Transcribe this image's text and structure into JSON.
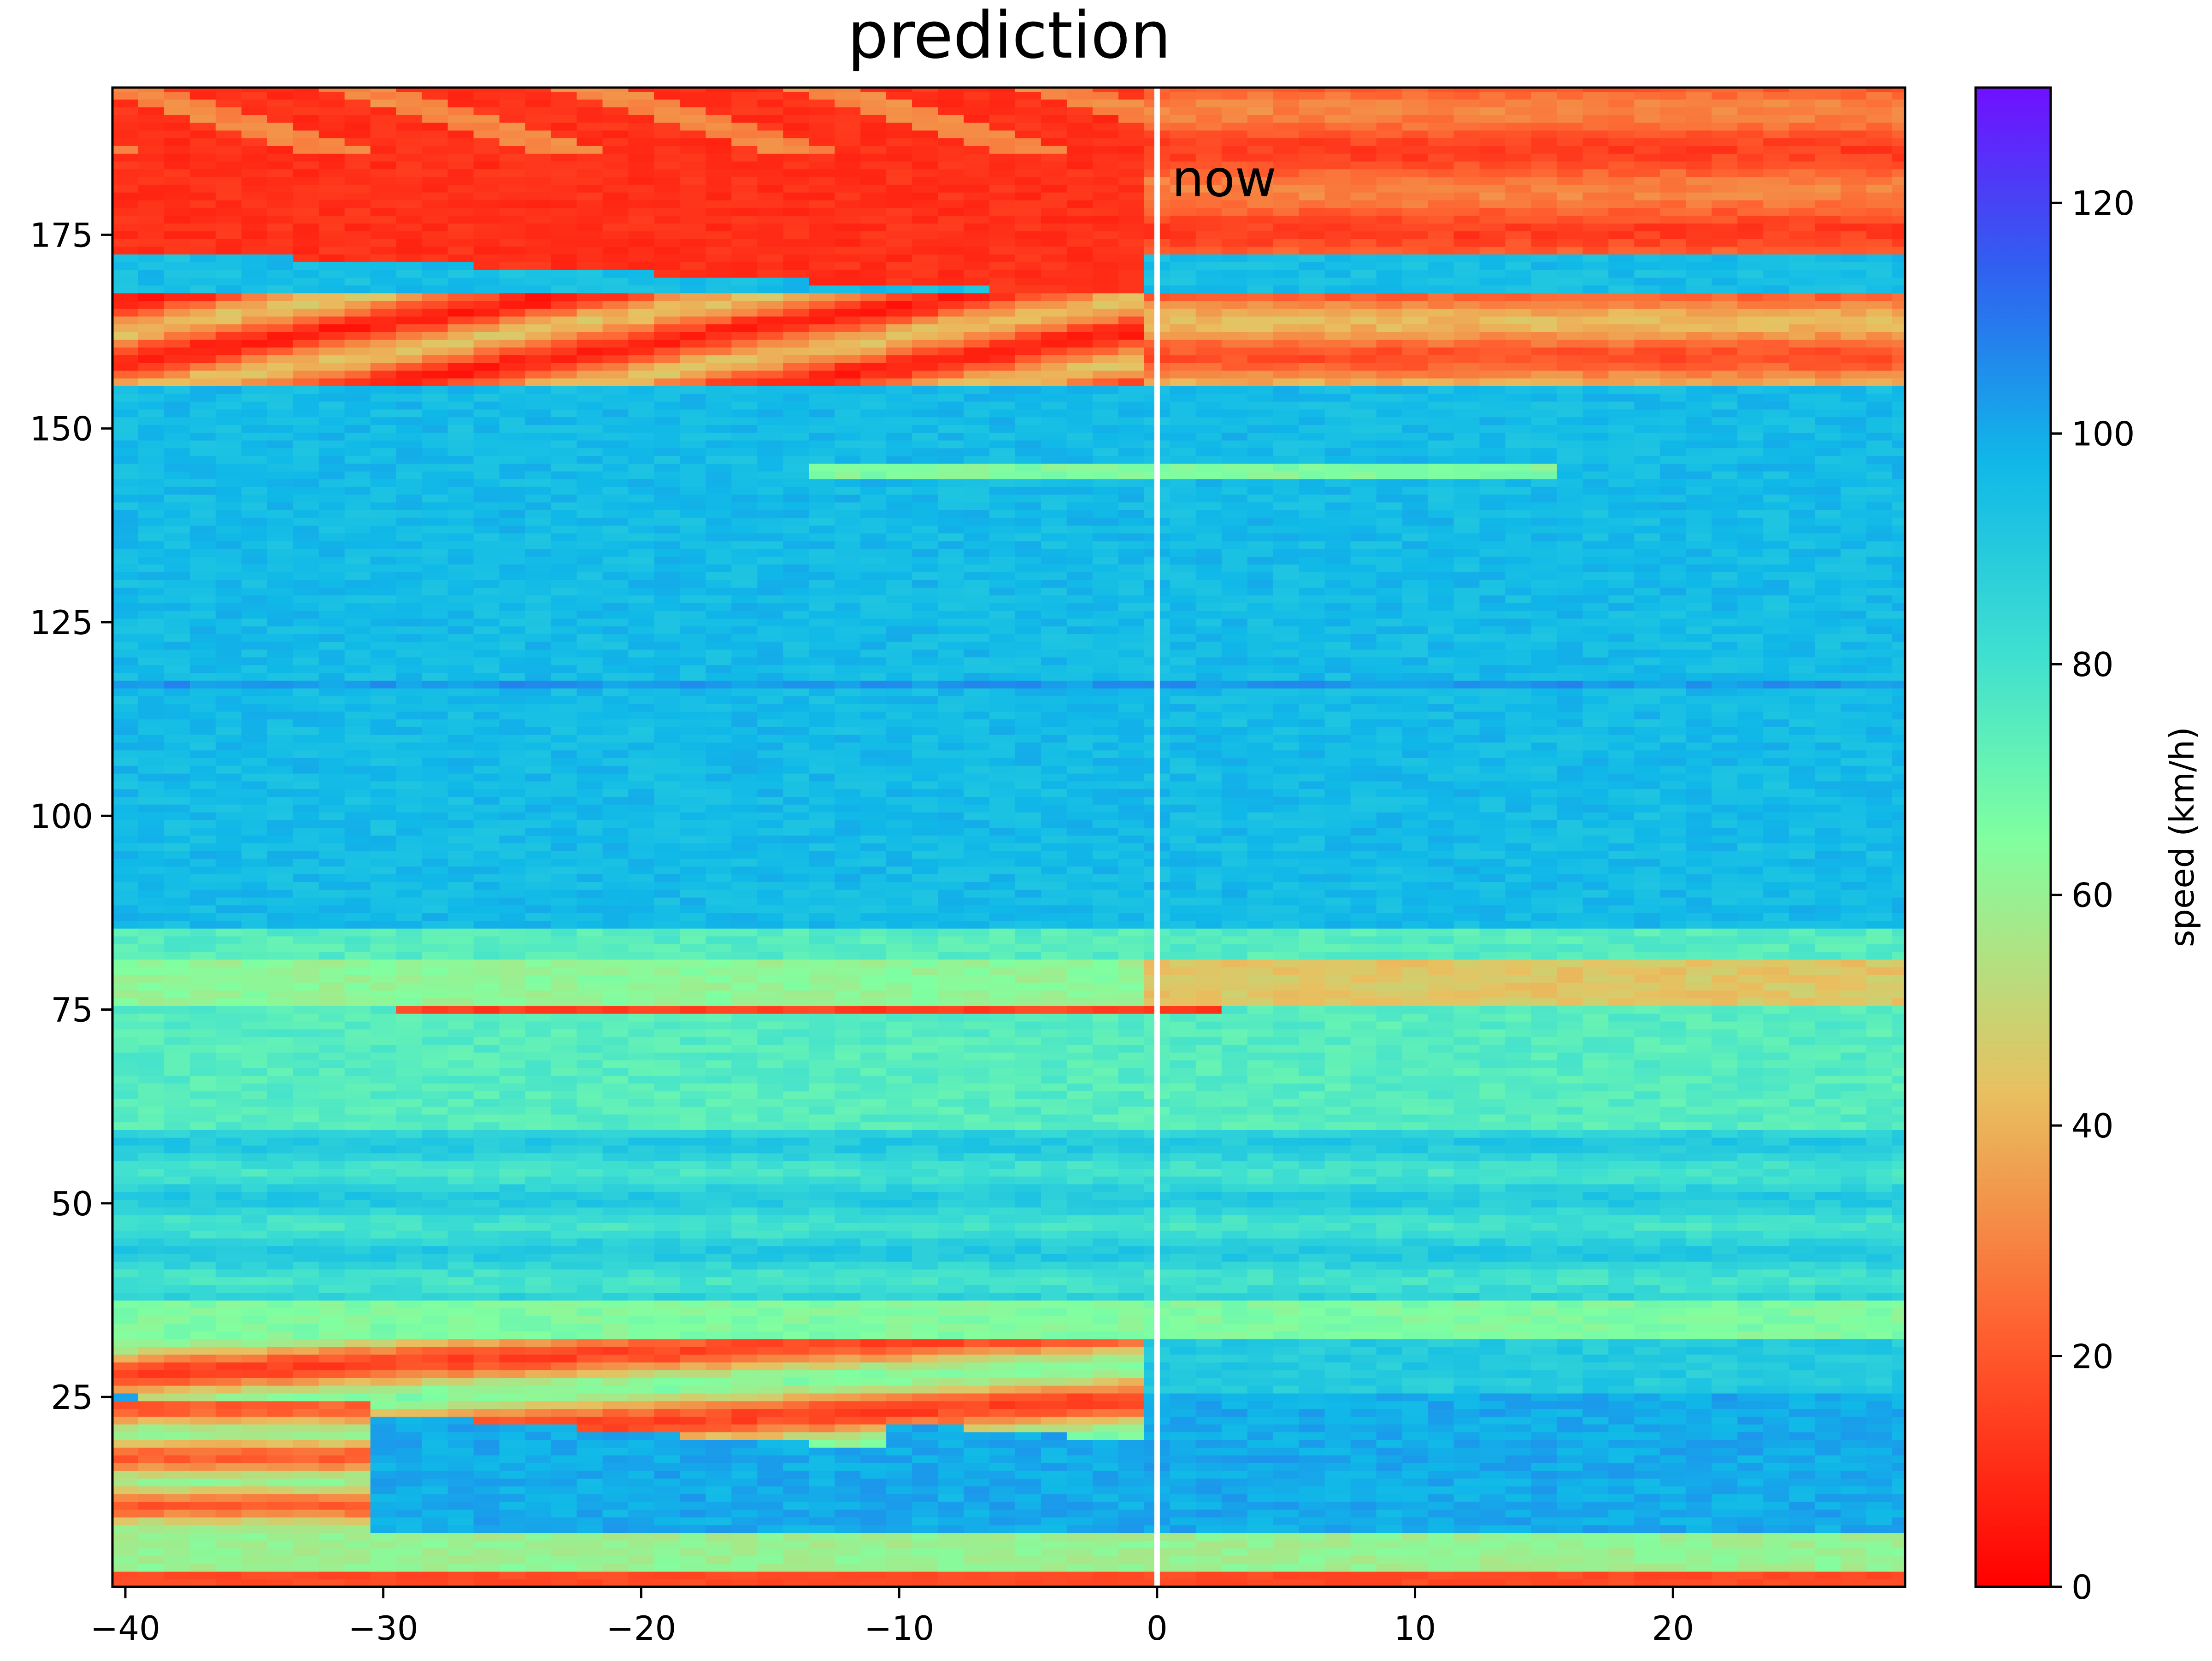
{
  "chart_data": {
    "type": "heatmap",
    "title": "prediction",
    "xlabel": "",
    "ylabel": "",
    "xlim": [
      -40.5,
      29
    ],
    "ylim": [
      0.5,
      194
    ],
    "x_ticks": [
      -40,
      -30,
      -20,
      -10,
      0,
      10,
      20
    ],
    "x_tick_labels": [
      "−40",
      "−30",
      "−20",
      "−10",
      "0",
      "10",
      "20"
    ],
    "y_ticks": [
      25,
      50,
      75,
      100,
      125,
      150,
      175
    ],
    "y_tick_labels": [
      "25",
      "50",
      "75",
      "100",
      "125",
      "150",
      "175"
    ],
    "grid": false,
    "now_line": {
      "x": 0,
      "label": "now",
      "color": "#ffffff"
    },
    "colorbar": {
      "label": "speed (km/h)",
      "min": 0,
      "max": 130,
      "ticks": [
        0,
        20,
        40,
        60,
        80,
        100,
        120
      ],
      "tick_labels": [
        "0",
        "20",
        "40",
        "60",
        "80",
        "100",
        "120"
      ],
      "colormap": "rainbow_r"
    },
    "rows_speed_at_now_kmh": [
      {
        "y_range": [
          0.5,
          3
        ],
        "speed": 12
      },
      {
        "y_range": [
          3,
          5
        ],
        "speed": 35
      },
      {
        "y_range": [
          5,
          8
        ],
        "speed": 70
      },
      {
        "y_range": [
          8,
          25
        ],
        "speed": 100
      },
      {
        "y_range": [
          25,
          33
        ],
        "speed": 75
      },
      {
        "y_range": [
          33,
          38
        ],
        "speed": 70
      },
      {
        "y_range": [
          38,
          86
        ],
        "speed": 85
      },
      {
        "y_range": [
          74.5,
          75.5
        ],
        "speed": 15
      },
      {
        "y_range": [
          86,
          117
        ],
        "speed": 95
      },
      {
        "y_range": [
          117,
          156
        ],
        "speed": 95
      },
      {
        "y_range": [
          156,
          168
        ],
        "speed": 20
      },
      {
        "y_range": [
          168,
          173
        ],
        "speed": 95
      },
      {
        "y_range": [
          173,
          194
        ],
        "speed": 10
      }
    ]
  }
}
